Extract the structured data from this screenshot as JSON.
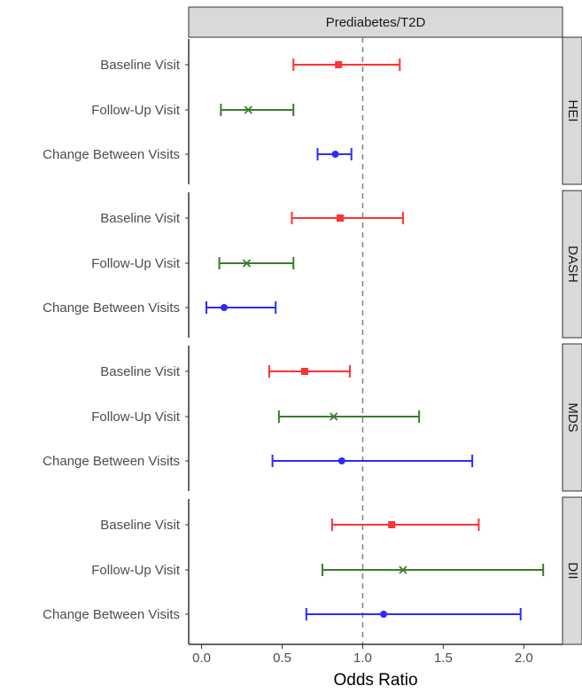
{
  "chart_data": {
    "type": "forest",
    "title": "",
    "column_strip": "Prediabetes/T2D",
    "xlabel": "Odds Ratio",
    "xlim": [
      -0.08,
      2.24
    ],
    "x_ticks": [
      "0.0",
      "0.5",
      "1.0",
      "1.5",
      "2.0"
    ],
    "x_tick_values": [
      0.0,
      0.5,
      1.0,
      1.5,
      2.0
    ],
    "reference_line": 1.0,
    "grid": false,
    "row_labels": [
      "Baseline Visit",
      "Follow-Up Visit",
      "Change Between Visits"
    ],
    "row_styles": [
      {
        "color": "#ff3333",
        "marker": "square"
      },
      {
        "color": "#3a7d2c",
        "marker": "x"
      },
      {
        "color": "#2b2bff",
        "marker": "circle"
      }
    ],
    "panels": [
      {
        "strip": "HEI",
        "rows": [
          {
            "label": "Baseline Visit",
            "or": 0.85,
            "lo": 0.57,
            "hi": 1.23
          },
          {
            "label": "Follow-Up Visit",
            "or": 0.29,
            "lo": 0.12,
            "hi": 0.57
          },
          {
            "label": "Change Between Visits",
            "or": 0.83,
            "lo": 0.72,
            "hi": 0.93
          }
        ]
      },
      {
        "strip": "DASH",
        "rows": [
          {
            "label": "Baseline Visit",
            "or": 0.86,
            "lo": 0.56,
            "hi": 1.25
          },
          {
            "label": "Follow-Up Visit",
            "or": 0.28,
            "lo": 0.11,
            "hi": 0.57
          },
          {
            "label": "Change Between Visits",
            "or": 0.14,
            "lo": 0.03,
            "hi": 0.46
          }
        ]
      },
      {
        "strip": "MDS",
        "rows": [
          {
            "label": "Baseline Visit",
            "or": 0.64,
            "lo": 0.42,
            "hi": 0.92
          },
          {
            "label": "Follow-Up Visit",
            "or": 0.82,
            "lo": 0.48,
            "hi": 1.35
          },
          {
            "label": "Change Between Visits",
            "or": 0.87,
            "lo": 0.44,
            "hi": 1.68
          }
        ]
      },
      {
        "strip": "DII",
        "rows": [
          {
            "label": "Baseline Visit",
            "or": 1.18,
            "lo": 0.81,
            "hi": 1.72
          },
          {
            "label": "Follow-Up Visit",
            "or": 1.25,
            "lo": 0.75,
            "hi": 2.12
          },
          {
            "label": "Change Between Visits",
            "or": 1.13,
            "lo": 0.65,
            "hi": 1.98
          }
        ]
      }
    ]
  }
}
